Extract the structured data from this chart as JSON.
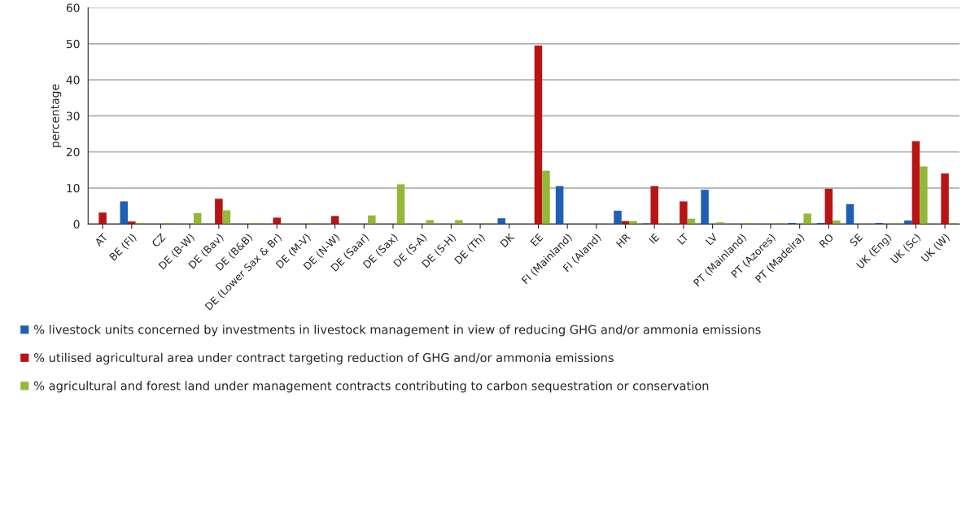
{
  "chart_data": {
    "type": "bar",
    "ylabel": "percentage",
    "categories": [
      "AT",
      "BE (Fl)",
      "CZ",
      "DE (B-W)",
      "DE (Bav)",
      "DE (B&B)",
      "DE (Lower Sax & Br)",
      "DE (M-V)",
      "DE (N-W)",
      "DE (Saar)",
      "DE (Sax)",
      "DE (S-A)",
      "DE (S-H)",
      "DE (Th)",
      "DK",
      "EE",
      "FI (Mainland)",
      "FI (Aland)",
      "HR",
      "IE",
      "LT",
      "LV",
      "PT (Mainland)",
      "PT (Azores)",
      "PT (Madeira)",
      "RO",
      "SE",
      "UK (Eng)",
      "UK (Sc)",
      "UK (W)"
    ],
    "series": [
      {
        "name": "% livestock units concerned by investments in livestock management in view of reducing GHG and/or ammonia emissions",
        "color": "#1f5fb4",
        "values": [
          null,
          6.3,
          null,
          null,
          null,
          null,
          null,
          null,
          null,
          null,
          null,
          null,
          null,
          null,
          1.6,
          null,
          10.5,
          null,
          3.7,
          0.2,
          null,
          9.5,
          null,
          null,
          0.3,
          0.3,
          5.5,
          0.3,
          1,
          null
        ]
      },
      {
        "name": "% utilised agricultural area under contract targeting reduction of GHG and/or ammonia emissions",
        "color": "#b81414",
        "values": [
          3.2,
          0.7,
          null,
          null,
          7,
          null,
          1.8,
          null,
          2.2,
          null,
          null,
          null,
          null,
          null,
          null,
          49.5,
          null,
          null,
          0.8,
          10.5,
          6.3,
          null,
          null,
          null,
          null,
          9.8,
          null,
          null,
          23,
          14
        ]
      },
      {
        "name": "% agricultural and forest land under management contracts contributing to carbon sequestration or conservation",
        "color": "#94b83a",
        "values": [
          null,
          0.3,
          0.3,
          3,
          3.8,
          0.3,
          null,
          0.3,
          null,
          2.4,
          11,
          1.1,
          1.1,
          0.3,
          null,
          14.8,
          null,
          null,
          0.8,
          0.2,
          1.5,
          0.5,
          0.3,
          0.3,
          2.9,
          1,
          null,
          0.2,
          16,
          0.3
        ]
      }
    ],
    "ylim": [
      0,
      60
    ],
    "yticks": [
      0,
      10,
      20,
      30,
      40,
      50,
      60
    ],
    "grid": "y",
    "legend": "bottom"
  }
}
